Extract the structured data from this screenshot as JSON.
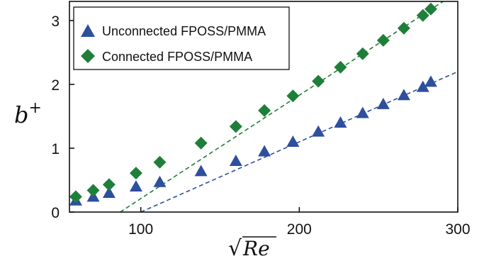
{
  "chart_data": {
    "type": "scatter",
    "xlabel_base": "Re",
    "xlabel_root": "√",
    "ylabel_base": "b",
    "ylabel_sup": "+",
    "xlim": [
      55,
      300
    ],
    "ylim": [
      0,
      3.3
    ],
    "xticks": [
      100,
      200,
      300
    ],
    "yticks": [
      0,
      1,
      2,
      3
    ],
    "grid": false,
    "legend_position": "top-left",
    "series": [
      {
        "name": "Unconnected FPOSS/PMMA",
        "marker": "triangle",
        "color": "#2e4f9e",
        "x": [
          59,
          70,
          80,
          97,
          112,
          138,
          160,
          178,
          196,
          212,
          226,
          240,
          253,
          266,
          278,
          283
        ],
        "y": [
          0.18,
          0.24,
          0.3,
          0.4,
          0.47,
          0.64,
          0.8,
          0.95,
          1.1,
          1.26,
          1.4,
          1.55,
          1.69,
          1.83,
          1.96,
          2.04
        ]
      },
      {
        "name": "Connected FPOSS/PMMA",
        "marker": "diamond",
        "color": "#1f7f3a",
        "x": [
          59,
          70,
          80,
          97,
          112,
          138,
          160,
          178,
          196,
          212,
          226,
          240,
          253,
          266,
          278,
          283
        ],
        "y": [
          0.24,
          0.34,
          0.43,
          0.61,
          0.78,
          1.08,
          1.34,
          1.59,
          1.82,
          2.05,
          2.27,
          2.48,
          2.69,
          2.88,
          3.08,
          3.18
        ]
      }
    ],
    "fit_lines": [
      {
        "color": "#2e4f9e",
        "x": [
          100,
          300
        ],
        "y": [
          0.0,
          2.2
        ]
      },
      {
        "color": "#1f7f3a",
        "x": [
          87,
          300
        ],
        "y": [
          0.0,
          3.45
        ]
      }
    ]
  }
}
